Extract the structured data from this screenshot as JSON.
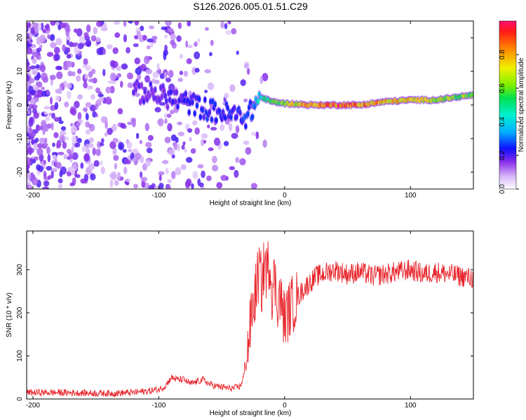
{
  "title": "S126.2026.005.01.51.C29",
  "chart_data": [
    {
      "type": "heatmap",
      "name": "spectrogram",
      "xlabel": "Height of straight line (km)",
      "ylabel": "Frequency (Hz)",
      "xlim": [
        -205,
        150
      ],
      "ylim": [
        -25,
        25
      ],
      "xticks": [
        -200,
        -100,
        0,
        100
      ],
      "yticks": [
        -20,
        -10,
        0,
        10,
        20
      ],
      "colorbar": {
        "label": "Normalized spectral amplitude",
        "range": [
          0,
          1
        ],
        "ticks": [
          0.0,
          0.2,
          0.4,
          0.6,
          0.8
        ]
      },
      "ridge": [
        {
          "x": -120,
          "f": 4,
          "a": 0.18
        },
        {
          "x": -100,
          "f": 3,
          "a": 0.2
        },
        {
          "x": -80,
          "f": 1,
          "a": 0.22
        },
        {
          "x": -60,
          "f": -1.5,
          "a": 0.25
        },
        {
          "x": -40,
          "f": -3,
          "a": 0.25
        },
        {
          "x": -30,
          "f": -3.5,
          "a": 0.28
        },
        {
          "x": -25,
          "f": -1,
          "a": 0.3
        },
        {
          "x": -20,
          "f": 2.5,
          "a": 0.45
        },
        {
          "x": -10,
          "f": 1,
          "a": 0.6
        },
        {
          "x": 0,
          "f": 0.5,
          "a": 0.65
        },
        {
          "x": 20,
          "f": 0,
          "a": 0.85
        },
        {
          "x": 40,
          "f": 0,
          "a": 0.9
        },
        {
          "x": 60,
          "f": 0,
          "a": 0.85
        },
        {
          "x": 80,
          "f": 1,
          "a": 0.8
        },
        {
          "x": 100,
          "f": 1.5,
          "a": 0.75
        },
        {
          "x": 120,
          "f": 1.5,
          "a": 0.7
        },
        {
          "x": 150,
          "f": 3,
          "a": 0.6
        }
      ]
    },
    {
      "type": "line",
      "name": "snr",
      "xlabel": "Height of straight line (km)",
      "ylabel": "SNR (10 * v/v)",
      "xlim": [
        -205,
        150
      ],
      "ylim": [
        0,
        390
      ],
      "xticks": [
        -200,
        -100,
        0,
        100
      ],
      "yticks": [
        0,
        100,
        200,
        300
      ],
      "color": "#e8262c",
      "series": [
        {
          "name": "SNR",
          "x": [
            -205,
            -180,
            -160,
            -140,
            -120,
            -110,
            -100,
            -95,
            -90,
            -85,
            -80,
            -75,
            -70,
            -65,
            -60,
            -55,
            -50,
            -45,
            -40,
            -35,
            -32,
            -30,
            -28,
            -26,
            -24,
            -22,
            -20,
            -18,
            -16,
            -14,
            -12,
            -10,
            -8,
            -6,
            -4,
            -2,
            0,
            5,
            10,
            15,
            20,
            25,
            30,
            35,
            40,
            50,
            60,
            70,
            80,
            90,
            100,
            110,
            120,
            130,
            140,
            150
          ],
          "y": [
            15,
            15,
            14,
            13,
            15,
            18,
            22,
            30,
            50,
            45,
            45,
            35,
            40,
            45,
            35,
            30,
            28,
            25,
            25,
            30,
            60,
            100,
            150,
            200,
            230,
            270,
            300,
            260,
            320,
            290,
            330,
            250,
            280,
            230,
            240,
            210,
            185,
            215,
            235,
            255,
            270,
            285,
            290,
            295,
            300,
            290,
            295,
            285,
            290,
            295,
            300,
            290,
            295,
            290,
            285,
            280
          ]
        }
      ]
    }
  ]
}
